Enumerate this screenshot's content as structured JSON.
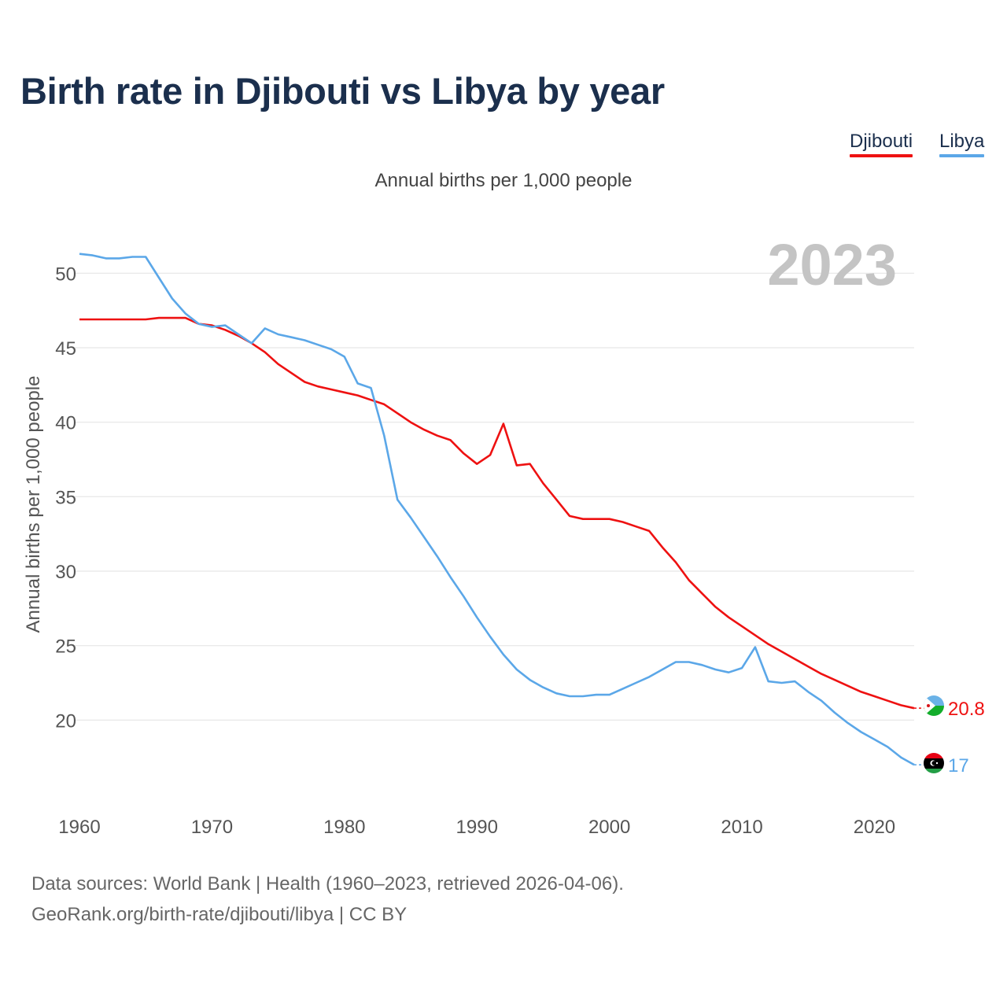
{
  "chart_data": {
    "type": "line",
    "title": "Birth rate in Djibouti vs Libya by year",
    "subtitle": "Annual births per 1,000 people",
    "ylabel": "Annual births per 1,000 people",
    "xlabel": "",
    "xlim": [
      1960,
      2023
    ],
    "ylim": [
      15,
      52.5
    ],
    "x_ticks": [
      1960,
      1970,
      1980,
      1990,
      2000,
      2010,
      2020
    ],
    "y_ticks": [
      20,
      25,
      30,
      35,
      40,
      45,
      50
    ],
    "grid": true,
    "legend_position": "top-right",
    "year_watermark": "2023",
    "series": [
      {
        "name": "Djibouti",
        "color": "#ee1111",
        "end_label": "20.8",
        "points": [
          [
            1960,
            46.9
          ],
          [
            1961,
            46.9
          ],
          [
            1962,
            46.9
          ],
          [
            1963,
            46.9
          ],
          [
            1964,
            46.9
          ],
          [
            1965,
            46.9
          ],
          [
            1966,
            47.0
          ],
          [
            1967,
            47.0
          ],
          [
            1968,
            47.0
          ],
          [
            1969,
            46.6
          ],
          [
            1970,
            46.5
          ],
          [
            1971,
            46.2
          ],
          [
            1972,
            45.8
          ],
          [
            1973,
            45.3
          ],
          [
            1974,
            44.7
          ],
          [
            1975,
            43.9
          ],
          [
            1976,
            43.3
          ],
          [
            1977,
            42.7
          ],
          [
            1978,
            42.4
          ],
          [
            1979,
            42.2
          ],
          [
            1980,
            42.0
          ],
          [
            1981,
            41.8
          ],
          [
            1982,
            41.5
          ],
          [
            1983,
            41.2
          ],
          [
            1984,
            40.6
          ],
          [
            1985,
            40.0
          ],
          [
            1986,
            39.5
          ],
          [
            1987,
            39.1
          ],
          [
            1988,
            38.8
          ],
          [
            1989,
            37.9
          ],
          [
            1990,
            37.2
          ],
          [
            1991,
            37.8
          ],
          [
            1992,
            39.9
          ],
          [
            1993,
            37.1
          ],
          [
            1994,
            37.2
          ],
          [
            1995,
            35.9
          ],
          [
            1996,
            34.8
          ],
          [
            1997,
            33.7
          ],
          [
            1998,
            33.5
          ],
          [
            1999,
            33.5
          ],
          [
            2000,
            33.5
          ],
          [
            2001,
            33.3
          ],
          [
            2002,
            33.0
          ],
          [
            2003,
            32.7
          ],
          [
            2004,
            31.6
          ],
          [
            2005,
            30.6
          ],
          [
            2006,
            29.4
          ],
          [
            2007,
            28.5
          ],
          [
            2008,
            27.6
          ],
          [
            2009,
            26.9
          ],
          [
            2010,
            26.3
          ],
          [
            2011,
            25.7
          ],
          [
            2012,
            25.1
          ],
          [
            2013,
            24.6
          ],
          [
            2014,
            24.1
          ],
          [
            2015,
            23.6
          ],
          [
            2016,
            23.1
          ],
          [
            2017,
            22.7
          ],
          [
            2018,
            22.3
          ],
          [
            2019,
            21.9
          ],
          [
            2020,
            21.6
          ],
          [
            2021,
            21.3
          ],
          [
            2022,
            21.0
          ],
          [
            2023,
            20.8
          ]
        ]
      },
      {
        "name": "Libya",
        "color": "#5ba7e8",
        "end_label": "17",
        "points": [
          [
            1960,
            51.3
          ],
          [
            1961,
            51.2
          ],
          [
            1962,
            51.0
          ],
          [
            1963,
            51.0
          ],
          [
            1964,
            51.1
          ],
          [
            1965,
            51.1
          ],
          [
            1966,
            49.7
          ],
          [
            1967,
            48.3
          ],
          [
            1968,
            47.3
          ],
          [
            1969,
            46.6
          ],
          [
            1970,
            46.4
          ],
          [
            1971,
            46.5
          ],
          [
            1972,
            45.9
          ],
          [
            1973,
            45.3
          ],
          [
            1974,
            46.3
          ],
          [
            1975,
            45.9
          ],
          [
            1976,
            45.7
          ],
          [
            1977,
            45.5
          ],
          [
            1978,
            45.2
          ],
          [
            1979,
            44.9
          ],
          [
            1980,
            44.4
          ],
          [
            1981,
            42.6
          ],
          [
            1982,
            42.3
          ],
          [
            1983,
            39.1
          ],
          [
            1984,
            34.8
          ],
          [
            1985,
            33.6
          ],
          [
            1986,
            32.3
          ],
          [
            1987,
            31.0
          ],
          [
            1988,
            29.6
          ],
          [
            1989,
            28.3
          ],
          [
            1990,
            26.9
          ],
          [
            1991,
            25.6
          ],
          [
            1992,
            24.4
          ],
          [
            1993,
            23.4
          ],
          [
            1994,
            22.7
          ],
          [
            1995,
            22.2
          ],
          [
            1996,
            21.8
          ],
          [
            1997,
            21.6
          ],
          [
            1998,
            21.6
          ],
          [
            1999,
            21.7
          ],
          [
            2000,
            21.7
          ],
          [
            2001,
            22.1
          ],
          [
            2002,
            22.5
          ],
          [
            2003,
            22.9
          ],
          [
            2004,
            23.4
          ],
          [
            2005,
            23.9
          ],
          [
            2006,
            23.9
          ],
          [
            2007,
            23.7
          ],
          [
            2008,
            23.4
          ],
          [
            2009,
            23.2
          ],
          [
            2010,
            23.5
          ],
          [
            2011,
            24.9
          ],
          [
            2012,
            22.6
          ],
          [
            2013,
            22.5
          ],
          [
            2014,
            22.6
          ],
          [
            2015,
            21.9
          ],
          [
            2016,
            21.3
          ],
          [
            2017,
            20.5
          ],
          [
            2018,
            19.8
          ],
          [
            2019,
            19.2
          ],
          [
            2020,
            18.7
          ],
          [
            2021,
            18.2
          ],
          [
            2022,
            17.5
          ],
          [
            2023,
            17.0
          ]
        ]
      }
    ]
  },
  "legend": {
    "djibouti_label": "Djibouti",
    "libya_label": "Libya"
  },
  "footer": {
    "line1": "Data sources: World Bank | Health (1960–2023, retrieved 2026-04-06).",
    "line2": "GeoRank.org/birth-rate/djibouti/libya | CC BY"
  }
}
